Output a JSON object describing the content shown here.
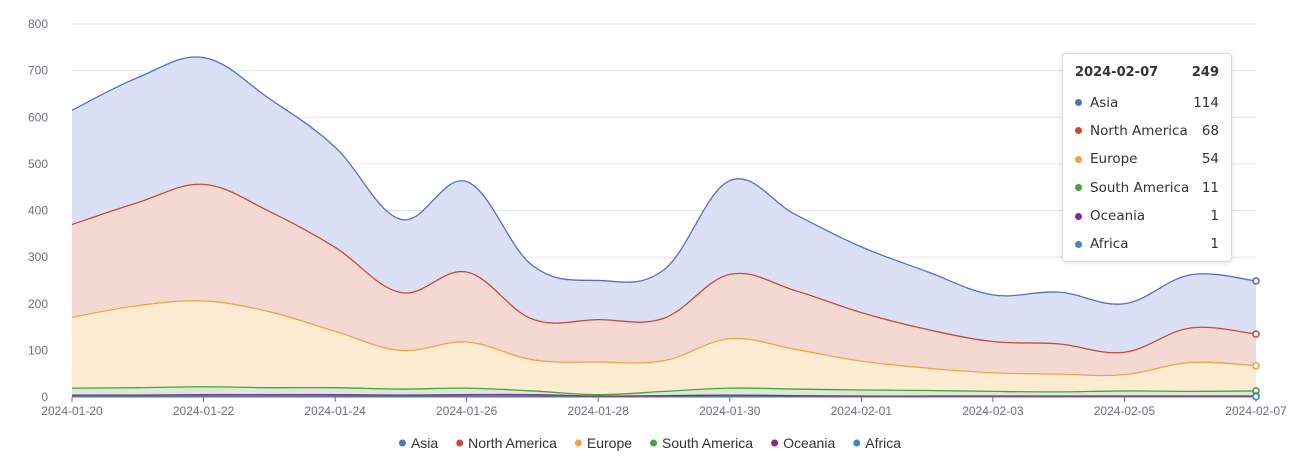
{
  "chart_data": {
    "type": "area",
    "stacked": true,
    "smooth": true,
    "x": [
      "2024-01-20",
      "2024-01-21",
      "2024-01-22",
      "2024-01-23",
      "2024-01-24",
      "2024-01-25",
      "2024-01-26",
      "2024-01-27",
      "2024-01-28",
      "2024-01-29",
      "2024-01-30",
      "2024-01-31",
      "2024-02-01",
      "2024-02-02",
      "2024-02-03",
      "2024-02-04",
      "2024-02-05",
      "2024-02-06",
      "2024-02-07"
    ],
    "x_tick_labels": [
      "2024-01-20",
      "2024-01-22",
      "2024-01-24",
      "2024-01-26",
      "2024-01-28",
      "2024-01-30",
      "2024-02-01",
      "2024-02-03",
      "2024-02-05",
      "2024-02-07"
    ],
    "ylim": [
      0,
      800
    ],
    "y_ticks": [
      0,
      100,
      200,
      300,
      400,
      500,
      600,
      700,
      800
    ],
    "legend_position": "bottom-center",
    "series": [
      {
        "name": "Asia",
        "color": "#5470c6",
        "fill": "#dbe0f4",
        "values": [
          245,
          268,
          272,
          242,
          215,
          157,
          194,
          115,
          84,
          104,
          201,
          163,
          141,
          124,
          100,
          111,
          104,
          114,
          114
        ]
      },
      {
        "name": "North America",
        "color": "#cc4a35",
        "fill": "#f4d9d3",
        "values": [
          199,
          221,
          250,
          215,
          180,
          124,
          150,
          87,
          91,
          91,
          138,
          126,
          104,
          83,
          67,
          65,
          48,
          74,
          68
        ]
      },
      {
        "name": "Europe",
        "color": "#f4a244",
        "fill": "#fdebd2",
        "values": [
          152,
          176,
          184,
          163,
          121,
          83,
          99,
          67,
          70,
          66,
          106,
          85,
          62,
          48,
          40,
          38,
          35,
          62,
          54
        ]
      },
      {
        "name": "South America",
        "color": "#46a33f",
        "fill": "#d6ecd3",
        "values": [
          15,
          16,
          17,
          15,
          15,
          13,
          14,
          8,
          3,
          9,
          15,
          14,
          13,
          12,
          10,
          9,
          11,
          10,
          11
        ]
      },
      {
        "name": "Oceania",
        "color": "#8b2a92",
        "fill": "#e8d4ea",
        "values": [
          2,
          2,
          3,
          3,
          3,
          2,
          3,
          3,
          1,
          2,
          2,
          2,
          1,
          1,
          1,
          1,
          1,
          1,
          1
        ]
      },
      {
        "name": "Africa",
        "color": "#3d86c6",
        "fill": "#d3e4f3",
        "values": [
          2,
          2,
          2,
          2,
          2,
          2,
          2,
          2,
          1,
          1,
          2,
          1,
          1,
          1,
          1,
          1,
          1,
          1,
          1
        ]
      }
    ],
    "tooltip": {
      "date": "2024-02-07",
      "total": "249",
      "rows": [
        {
          "name": "Asia",
          "value": "114"
        },
        {
          "name": "North America",
          "value": "68"
        },
        {
          "name": "Europe",
          "value": "54"
        },
        {
          "name": "South America",
          "value": "11"
        },
        {
          "name": "Oceania",
          "value": "1"
        },
        {
          "name": "Africa",
          "value": "1"
        }
      ]
    }
  }
}
